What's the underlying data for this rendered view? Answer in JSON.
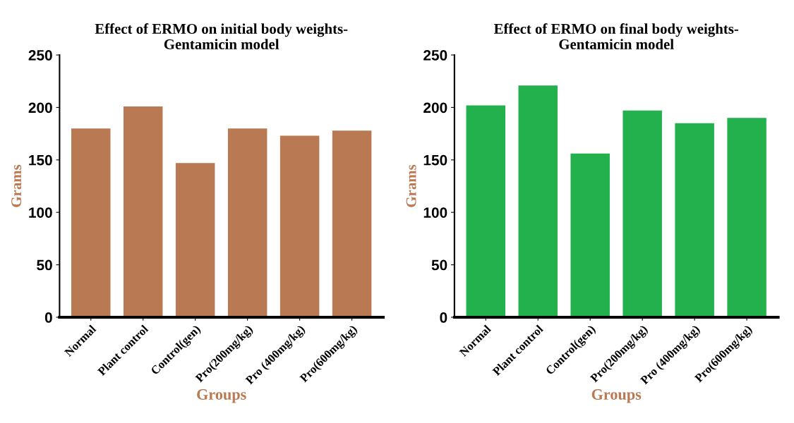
{
  "chart_data": [
    {
      "type": "bar",
      "title": "Effect of ERMO on initial body weights-\nGentamicin model",
      "xlabel": "Groups",
      "ylabel": "Grams",
      "categories": [
        "Normal",
        "Plant control",
        "Control(gen)",
        "Pro(200mg/kg)",
        "Pro (400mg/kg)",
        "Pro(600mg/kg)"
      ],
      "values": [
        180,
        201,
        147,
        180,
        173,
        178
      ],
      "color": "#b87953",
      "ylim": [
        0,
        250
      ],
      "yticks": [
        0,
        50,
        100,
        150,
        200,
        250
      ],
      "grid": false
    },
    {
      "type": "bar",
      "title": "Effect of ERMO on final body weights-\nGentamicin model",
      "xlabel": "Groups",
      "ylabel": "Grams",
      "categories": [
        "Normal",
        "Plant control",
        "Control(gen)",
        "Pro(200mg/kg)",
        "Pro (400mg/kg)",
        "Pro(600mg/kg)"
      ],
      "values": [
        202,
        221,
        156,
        197,
        185,
        190
      ],
      "color": "#22b14c",
      "ylim": [
        0,
        250
      ],
      "yticks": [
        0,
        50,
        100,
        150,
        200,
        250
      ],
      "grid": false
    }
  ]
}
